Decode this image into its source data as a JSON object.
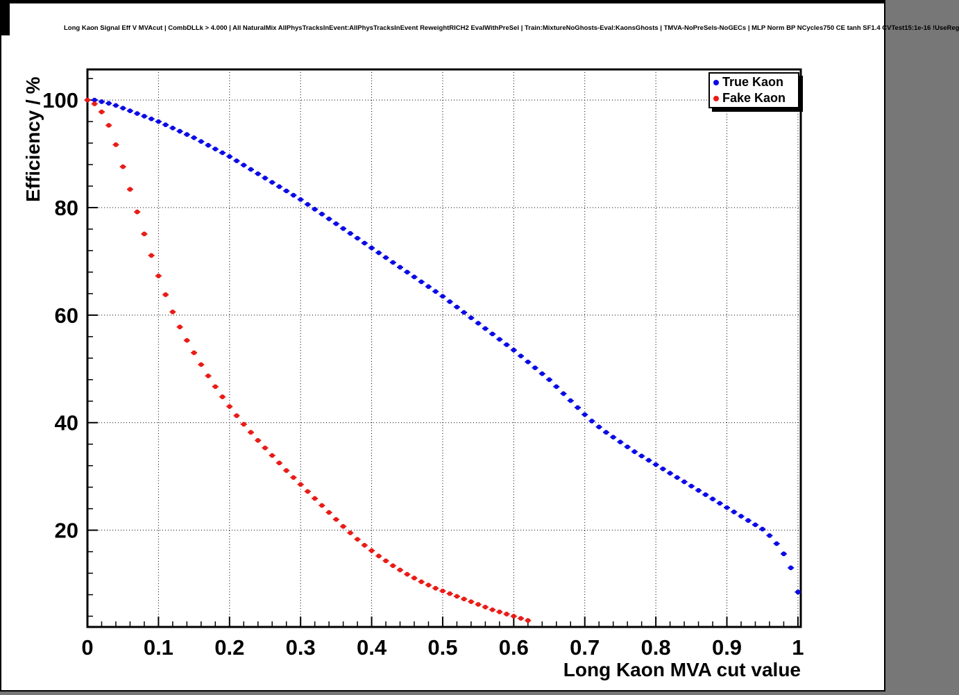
{
  "title": "Long Kaon Signal Eff V MVAcut | CombDLLk > 4.000 | All NaturalMix AllPhysTracksInEvent:AllPhysTracksInEvent ReweightRICH2 EvalWithPreSel | Train:MixtureNoGhosts-Eval:KaonsGhosts | TMVA-NoPreSels-NoGECs | MLP Norm BP NCycles750 CE tanh SF1.4 CVTest15:1e-16 !UseReg",
  "chart_data": {
    "type": "scatter",
    "title": "Long Kaon Signal Eff V MVAcut | CombDLLk > 4.000 | All NaturalMix AllPhysTracksInEvent:AllPhysTracksInEvent ReweightRICH2 EvalWithPreSel | Train:MixtureNoGhosts-Eval:KaonsGhosts | TMVA-NoPreSels-NoGECs | MLP Norm BP NCycles750 CE tanh SF1.4 CVTest15:1e-16 !UseReg",
    "xlabel": "Long Kaon MVA cut value",
    "ylabel": "Efficiency / %",
    "xlim": [
      0,
      1.004
    ],
    "ylim": [
      2,
      105.7
    ],
    "x_tick_values": [
      0,
      0.1,
      0.2,
      0.3,
      0.4,
      0.5,
      0.6,
      0.7,
      0.8,
      0.9,
      1
    ],
    "x_tick_labels": [
      "0",
      "0.1",
      "0.2",
      "0.3",
      "0.4",
      "0.5",
      "0.6",
      "0.7",
      "0.8",
      "0.9",
      "1"
    ],
    "y_tick_values": [
      20,
      40,
      60,
      80,
      100
    ],
    "y_tick_labels": [
      "20",
      "40",
      "60",
      "80",
      "100"
    ],
    "x_minor_step": 0.02,
    "y_minor_step": 4,
    "grid": "dotted",
    "legend": {
      "position": "top-right"
    },
    "series": [
      {
        "name": "True Kaon",
        "color": "#0a0ae6",
        "marker": "circle",
        "points": [
          [
            0,
            100
          ],
          [
            0.01,
            100
          ],
          [
            0.02,
            99.7
          ],
          [
            0.03,
            99.4
          ],
          [
            0.04,
            99
          ],
          [
            0.05,
            98.5
          ],
          [
            0.06,
            98
          ],
          [
            0.07,
            97.5
          ],
          [
            0.08,
            97
          ],
          [
            0.09,
            96.5
          ],
          [
            0.1,
            96
          ],
          [
            0.11,
            95.4
          ],
          [
            0.12,
            94.8
          ],
          [
            0.13,
            94.2
          ],
          [
            0.14,
            93.6
          ],
          [
            0.15,
            93
          ],
          [
            0.16,
            92.3
          ],
          [
            0.17,
            91.6
          ],
          [
            0.18,
            90.9
          ],
          [
            0.19,
            90.2
          ],
          [
            0.2,
            89.5
          ],
          [
            0.21,
            88.7
          ],
          [
            0.22,
            87.9
          ],
          [
            0.23,
            87.1
          ],
          [
            0.24,
            86.3
          ],
          [
            0.25,
            85.5
          ],
          [
            0.26,
            84.7
          ],
          [
            0.27,
            83.9
          ],
          [
            0.28,
            83.1
          ],
          [
            0.29,
            82.3
          ],
          [
            0.3,
            81.5
          ],
          [
            0.31,
            80.6
          ],
          [
            0.32,
            79.7
          ],
          [
            0.33,
            78.8
          ],
          [
            0.34,
            77.9
          ],
          [
            0.35,
            77
          ],
          [
            0.36,
            76.1
          ],
          [
            0.37,
            75.2
          ],
          [
            0.38,
            74.3
          ],
          [
            0.39,
            73.4
          ],
          [
            0.4,
            72.5
          ],
          [
            0.41,
            71.6
          ],
          [
            0.42,
            70.7
          ],
          [
            0.43,
            69.8
          ],
          [
            0.44,
            68.9
          ],
          [
            0.45,
            68
          ],
          [
            0.46,
            67.1
          ],
          [
            0.47,
            66.2
          ],
          [
            0.48,
            65.3
          ],
          [
            0.49,
            64.4
          ],
          [
            0.5,
            63.5
          ],
          [
            0.51,
            62.5
          ],
          [
            0.52,
            61.5
          ],
          [
            0.53,
            60.5
          ],
          [
            0.54,
            59.5
          ],
          [
            0.55,
            58.5
          ],
          [
            0.56,
            57.5
          ],
          [
            0.57,
            56.5
          ],
          [
            0.58,
            55.5
          ],
          [
            0.59,
            54.5
          ],
          [
            0.6,
            53.5
          ],
          [
            0.61,
            52.4
          ],
          [
            0.62,
            51.3
          ],
          [
            0.63,
            50.2
          ],
          [
            0.64,
            49.1
          ],
          [
            0.65,
            48
          ],
          [
            0.66,
            46.7
          ],
          [
            0.67,
            45.4
          ],
          [
            0.68,
            44.1
          ],
          [
            0.69,
            42.8
          ],
          [
            0.7,
            41.5
          ],
          [
            0.71,
            40.3
          ],
          [
            0.72,
            39.2
          ],
          [
            0.73,
            38.2
          ],
          [
            0.74,
            37.3
          ],
          [
            0.75,
            36.4
          ],
          [
            0.76,
            35.5
          ],
          [
            0.77,
            34.6
          ],
          [
            0.78,
            33.8
          ],
          [
            0.79,
            33
          ],
          [
            0.8,
            32.2
          ],
          [
            0.81,
            31.4
          ],
          [
            0.82,
            30.6
          ],
          [
            0.83,
            29.8
          ],
          [
            0.84,
            29
          ],
          [
            0.85,
            28.2
          ],
          [
            0.86,
            27.4
          ],
          [
            0.87,
            26.6
          ],
          [
            0.88,
            25.8
          ],
          [
            0.89,
            25
          ],
          [
            0.9,
            24.2
          ],
          [
            0.91,
            23.4
          ],
          [
            0.92,
            22.6
          ],
          [
            0.93,
            21.8
          ],
          [
            0.94,
            21
          ],
          [
            0.95,
            20.2
          ],
          [
            0.96,
            19
          ],
          [
            0.97,
            17.5
          ],
          [
            0.98,
            15.6
          ],
          [
            0.99,
            13
          ],
          [
            1,
            8.5
          ]
        ]
      },
      {
        "name": "Fake Kaon",
        "color": "#e81c17",
        "marker": "circle",
        "points": [
          [
            0,
            100
          ],
          [
            0.01,
            99.3
          ],
          [
            0.02,
            97.8
          ],
          [
            0.03,
            95.3
          ],
          [
            0.04,
            91.7
          ],
          [
            0.05,
            87.6
          ],
          [
            0.06,
            83.4
          ],
          [
            0.07,
            79.2
          ],
          [
            0.08,
            75.1
          ],
          [
            0.09,
            71.1
          ],
          [
            0.1,
            67.3
          ],
          [
            0.11,
            63.8
          ],
          [
            0.12,
            60.6
          ],
          [
            0.13,
            57.8
          ],
          [
            0.14,
            55.3
          ],
          [
            0.15,
            53
          ],
          [
            0.16,
            50.8
          ],
          [
            0.17,
            48.7
          ],
          [
            0.18,
            46.7
          ],
          [
            0.19,
            44.8
          ],
          [
            0.2,
            43
          ],
          [
            0.21,
            41.3
          ],
          [
            0.22,
            39.7
          ],
          [
            0.23,
            38.2
          ],
          [
            0.24,
            36.7
          ],
          [
            0.25,
            35.3
          ],
          [
            0.26,
            33.9
          ],
          [
            0.27,
            32.5
          ],
          [
            0.28,
            31.1
          ],
          [
            0.29,
            29.8
          ],
          [
            0.3,
            28.5
          ],
          [
            0.31,
            27.2
          ],
          [
            0.32,
            25.9
          ],
          [
            0.33,
            24.6
          ],
          [
            0.34,
            23.3
          ],
          [
            0.35,
            22
          ],
          [
            0.36,
            20.7
          ],
          [
            0.37,
            19.5
          ],
          [
            0.38,
            18.3
          ],
          [
            0.39,
            17.2
          ],
          [
            0.4,
            16.2
          ],
          [
            0.41,
            15.2
          ],
          [
            0.42,
            14.3
          ],
          [
            0.43,
            13.4
          ],
          [
            0.44,
            12.6
          ],
          [
            0.45,
            11.8
          ],
          [
            0.46,
            11.1
          ],
          [
            0.47,
            10.4
          ],
          [
            0.48,
            9.8
          ],
          [
            0.49,
            9.2
          ],
          [
            0.5,
            8.7
          ],
          [
            0.51,
            8.2
          ],
          [
            0.52,
            7.7
          ],
          [
            0.53,
            7.2
          ],
          [
            0.54,
            6.7
          ],
          [
            0.55,
            6.2
          ],
          [
            0.56,
            5.7
          ],
          [
            0.57,
            5.2
          ],
          [
            0.58,
            4.8
          ],
          [
            0.59,
            4.4
          ],
          [
            0.6,
            4
          ],
          [
            0.61,
            3.6
          ],
          [
            0.62,
            3.2
          ]
        ]
      }
    ]
  }
}
